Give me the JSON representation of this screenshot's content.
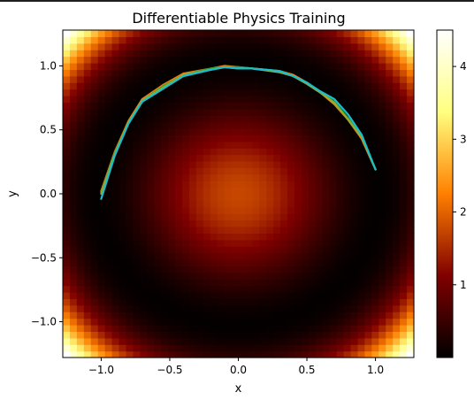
{
  "chart_data": {
    "type": "heatmap",
    "title": "Differentiable Physics Training",
    "xlabel": "x",
    "ylabel": "y",
    "xlim": [
      -1.28,
      1.28
    ],
    "ylim": [
      -1.28,
      1.28
    ],
    "xticks": [
      -1.0,
      -0.5,
      0.0,
      0.5,
      1.0
    ],
    "yticks": [
      -1.0,
      -0.5,
      0.0,
      0.5,
      1.0
    ],
    "xtick_labels": [
      "−1.0",
      "−0.5",
      "0.0",
      "0.5",
      "1.0"
    ],
    "ytick_labels": [
      "−1.0",
      "−0.5",
      "0.0",
      "0.5",
      "1.0"
    ],
    "colormap": "afmhot",
    "field": "(x^2 + y^2 - 1)^2 + 0.75*exp(-(x^2+y^2)/0.35)",
    "grid_cells": 50,
    "colorbar": {
      "min": 0.0,
      "max": 4.5,
      "ticks": [
        1,
        2,
        3,
        4
      ],
      "tick_labels": [
        "1",
        "2",
        "3",
        "4"
      ]
    },
    "grid": false,
    "series": [
      {
        "color": "#ff7f0e",
        "x": [
          -1.0,
          -0.9,
          -0.8,
          -0.7,
          -0.55,
          -0.4,
          -0.2,
          -0.1,
          0.0,
          0.1,
          0.3,
          0.4,
          0.5,
          0.6,
          0.7,
          0.8,
          0.9,
          1.0
        ],
        "y": [
          0.02,
          0.33,
          0.57,
          0.74,
          0.85,
          0.94,
          0.98,
          1.0,
          0.99,
          0.98,
          0.96,
          0.93,
          0.87,
          0.79,
          0.7,
          0.58,
          0.43,
          0.19
        ]
      },
      {
        "color": "#2ca02c",
        "x": [
          -1.0,
          -0.9,
          -0.8,
          -0.7,
          -0.55,
          -0.4,
          -0.2,
          -0.1,
          0.0,
          0.1,
          0.3,
          0.4,
          0.5,
          0.6,
          0.7,
          0.8,
          0.9,
          1.0
        ],
        "y": [
          0.01,
          0.32,
          0.56,
          0.73,
          0.84,
          0.93,
          0.98,
          0.99,
          0.99,
          0.98,
          0.96,
          0.92,
          0.86,
          0.79,
          0.72,
          0.59,
          0.45,
          0.19
        ]
      },
      {
        "color": "#9aa832",
        "x": [
          -1.0,
          -0.9,
          -0.8,
          -0.7,
          -0.55,
          -0.4,
          -0.2,
          -0.1,
          0.0,
          0.1,
          0.3,
          0.4,
          0.5,
          0.6,
          0.7,
          0.8,
          0.9,
          1.0
        ],
        "y": [
          0.0,
          0.31,
          0.56,
          0.73,
          0.83,
          0.93,
          0.97,
          0.99,
          0.98,
          0.98,
          0.95,
          0.92,
          0.86,
          0.79,
          0.71,
          0.58,
          0.44,
          0.19
        ]
      },
      {
        "color": "#17becf",
        "x": [
          -1.0,
          -0.9,
          -0.8,
          -0.7,
          -0.55,
          -0.4,
          -0.2,
          -0.1,
          0.0,
          0.1,
          0.3,
          0.4,
          0.5,
          0.6,
          0.7,
          0.8,
          0.9,
          1.0
        ],
        "y": [
          -0.04,
          0.3,
          0.55,
          0.72,
          0.82,
          0.92,
          0.97,
          0.99,
          0.98,
          0.98,
          0.96,
          0.92,
          0.87,
          0.8,
          0.74,
          0.62,
          0.46,
          0.19
        ]
      }
    ]
  }
}
